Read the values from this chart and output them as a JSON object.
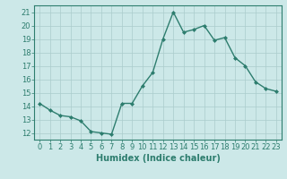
{
  "xlabel": "Humidex (Indice chaleur)",
  "x_values": [
    0,
    1,
    2,
    3,
    4,
    5,
    6,
    7,
    8,
    9,
    10,
    11,
    12,
    13,
    14,
    15,
    16,
    17,
    18,
    19,
    20,
    21,
    22,
    23
  ],
  "y_values": [
    14.2,
    13.7,
    13.3,
    13.2,
    12.9,
    12.1,
    12.0,
    11.9,
    14.2,
    14.2,
    15.5,
    16.5,
    19.0,
    21.0,
    19.5,
    19.7,
    20.0,
    18.9,
    19.1,
    17.6,
    17.0,
    15.8,
    15.3,
    15.1
  ],
  "line_color": "#2d7d6e",
  "marker": "D",
  "marker_size": 2.0,
  "background_color": "#cce8e8",
  "grid_color": "#aacccc",
  "ylim": [
    11.5,
    21.5
  ],
  "yticks": [
    12,
    13,
    14,
    15,
    16,
    17,
    18,
    19,
    20,
    21
  ],
  "xlim": [
    -0.5,
    23.5
  ],
  "xlabel_fontsize": 7,
  "tick_fontsize": 6,
  "line_width": 1.0,
  "marker_fill": "#2d7d6e"
}
